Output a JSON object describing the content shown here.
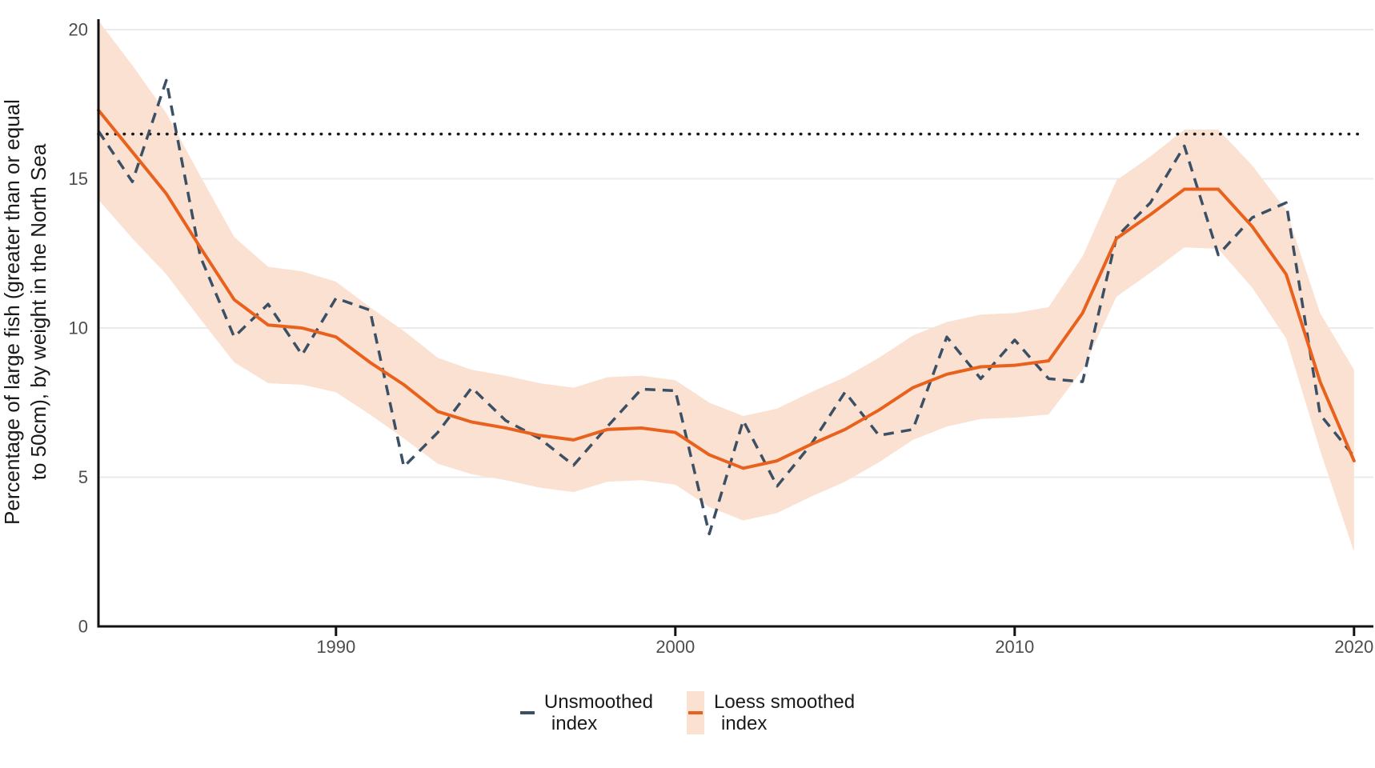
{
  "chart_data": {
    "type": "line",
    "title": "",
    "y_axis": {
      "label_line1": "Percentage of large fish (greater than or equal",
      "label_line2": "to 50cm), by weight in the North Sea",
      "ticks": [
        0,
        5,
        10,
        15,
        20
      ],
      "range": [
        0,
        20.4
      ]
    },
    "x_axis": {
      "ticks": [
        1990,
        2000,
        2010,
        2020
      ],
      "range": [
        1983,
        2020.6
      ]
    },
    "reference_line": {
      "value": 16.5,
      "style": "dotted"
    },
    "grid": {
      "horizontal": true,
      "vertical": false
    },
    "years": [
      1983,
      1984,
      1985,
      1986,
      1987,
      1988,
      1989,
      1990,
      1991,
      1992,
      1993,
      1994,
      1995,
      1996,
      1997,
      1998,
      1999,
      2000,
      2001,
      2002,
      2003,
      2004,
      2005,
      2006,
      2007,
      2008,
      2009,
      2010,
      2011,
      2012,
      2013,
      2014,
      2015,
      2016,
      2017,
      2018,
      2019,
      2020
    ],
    "series": [
      {
        "name": "Unsmoothed index",
        "line_style": "dashed",
        "values": [
          16.6,
          14.9,
          18.3,
          12.4,
          9.7,
          10.8,
          9.1,
          11.0,
          10.6,
          5.35,
          6.5,
          8.0,
          6.9,
          6.3,
          5.4,
          6.7,
          7.95,
          7.9,
          3.1,
          6.9,
          4.7,
          6.1,
          7.85,
          6.4,
          6.6,
          9.7,
          8.3,
          9.6,
          8.3,
          8.2,
          13.05,
          14.2,
          16.1,
          12.45,
          13.7,
          14.2,
          7.1,
          5.7
        ]
      },
      {
        "name": "Loess smoothed index",
        "line_style": "solid",
        "values": [
          17.3,
          15.9,
          14.5,
          12.7,
          10.95,
          10.1,
          10.0,
          9.7,
          8.85,
          8.1,
          7.2,
          6.85,
          6.65,
          6.4,
          6.25,
          6.6,
          6.65,
          6.5,
          5.75,
          5.3,
          5.55,
          6.1,
          6.6,
          7.25,
          8.0,
          8.45,
          8.7,
          8.75,
          8.9,
          10.5,
          13.0,
          13.8,
          14.65,
          14.65,
          13.4,
          11.8,
          8.2,
          5.55
        ],
        "band_lower": [
          14.3,
          13.0,
          11.8,
          10.3,
          8.85,
          8.15,
          8.1,
          7.85,
          7.1,
          6.3,
          5.45,
          5.1,
          4.9,
          4.65,
          4.5,
          4.85,
          4.9,
          4.75,
          4.0,
          3.55,
          3.8,
          4.35,
          4.85,
          5.5,
          6.25,
          6.7,
          6.95,
          7.0,
          7.1,
          8.6,
          11.05,
          11.85,
          12.7,
          12.65,
          11.35,
          9.65,
          5.9,
          2.5
        ],
        "band_upper": [
          20.3,
          18.8,
          17.2,
          15.1,
          13.05,
          12.05,
          11.9,
          11.55,
          10.7,
          9.9,
          9.0,
          8.6,
          8.4,
          8.15,
          8.0,
          8.35,
          8.4,
          8.25,
          7.5,
          7.05,
          7.3,
          7.85,
          8.35,
          9.0,
          9.75,
          10.2,
          10.45,
          10.5,
          10.7,
          12.4,
          14.95,
          15.75,
          16.65,
          16.65,
          15.45,
          13.95,
          10.5,
          8.6
        ]
      }
    ],
    "legend": {
      "position": "bottom-center",
      "items": [
        {
          "label_lines": [
            "Unsmoothed",
            "index"
          ],
          "key": "dash"
        },
        {
          "label_lines": [
            "Loess smoothed",
            "index"
          ],
          "key": "band-with-line"
        }
      ]
    },
    "colors": {
      "unsmoothed_line": "#3b5064",
      "loess_line": "#e8621d",
      "band": "#fbe1d2",
      "grid": "#ebebeb",
      "axis": "#111111",
      "tick_label": "#4d4d4d",
      "reference_line": "#1a1a1a",
      "background": "#ffffff"
    }
  }
}
